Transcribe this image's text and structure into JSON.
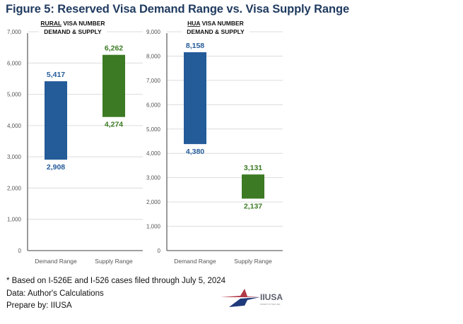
{
  "figure_title": "Figure 5: Reserved Visa Demand Range vs. Visa Supply Range",
  "colors": {
    "demand": "#245b99",
    "supply": "#3c7a23",
    "title": "#1f3a5f"
  },
  "chart_data": [
    {
      "type": "bar",
      "subtype": "floating-range",
      "title_underlined": "RURAL",
      "title_rest": " VISA NUMBER",
      "title_line2": "DEMAND & SUPPLY",
      "categories": [
        "Demand Range",
        "Supply Range"
      ],
      "series": [
        {
          "name": "Demand Range",
          "low": 2908,
          "high": 5417,
          "low_label": "2,908",
          "high_label": "5,417",
          "color": "#245b99"
        },
        {
          "name": "Supply Range",
          "low": 4274,
          "high": 6262,
          "low_label": "4,274",
          "high_label": "6,262",
          "color": "#3c7a23"
        }
      ],
      "ylim": [
        0,
        7000
      ],
      "yticks": [
        0,
        1000,
        2000,
        3000,
        4000,
        5000,
        6000,
        7000
      ],
      "ytick_labels": [
        "0",
        "1,000",
        "2,000",
        "3,000",
        "4,000",
        "5,000",
        "6,000",
        "7,000"
      ],
      "grid": true
    },
    {
      "type": "bar",
      "subtype": "floating-range",
      "title_underlined": "HUA",
      "title_rest": " VISA NUMBER",
      "title_line2": "DEMAND & SUPPLY",
      "categories": [
        "Demand Range",
        "Supply Range"
      ],
      "series": [
        {
          "name": "Demand Range",
          "low": 4380,
          "high": 8158,
          "low_label": "4,380",
          "high_label": "8,158",
          "color": "#245b99"
        },
        {
          "name": "Supply Range",
          "low": 2137,
          "high": 3131,
          "low_label": "2,137",
          "high_label": "3,131",
          "color": "#3c7a23"
        }
      ],
      "ylim": [
        0,
        9000
      ],
      "yticks": [
        0,
        1000,
        2000,
        3000,
        4000,
        5000,
        6000,
        7000,
        8000,
        9000
      ],
      "ytick_labels": [
        "0",
        "1,000",
        "2,000",
        "3,000",
        "4,000",
        "5,000",
        "6,000",
        "7,000",
        "8,000",
        "9,000"
      ],
      "grid": true
    }
  ],
  "notes": [
    "* Based on I-526E and I-526 cases filed through July 5, 2024",
    "Data: Author's Calculations",
    "Prepare by: IIUSA"
  ],
  "logo": {
    "name": "IIUSA",
    "tagline": "INVEST IN THE USA"
  }
}
